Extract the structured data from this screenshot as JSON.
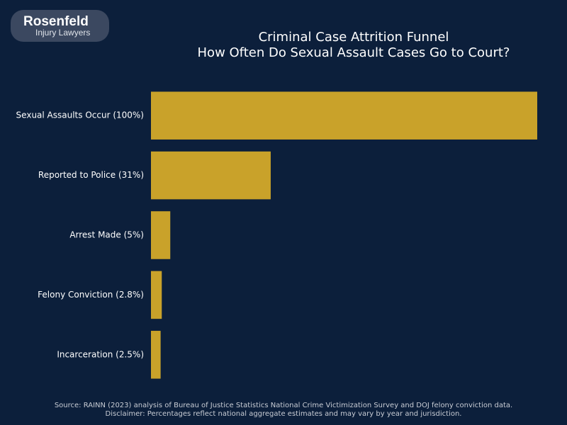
{
  "logo": {
    "name": "Rosenfeld",
    "tagline": "Injury Lawyers"
  },
  "chart_data": {
    "type": "bar",
    "orientation": "horizontal",
    "title": "Criminal Case Attrition Funnel",
    "subtitle": "How Often Do Sexual Assault Cases Go to Court?",
    "categories": [
      "Sexual Assaults Occur (100%)",
      "Reported to Police (31%)",
      "Arrest Made (5%)",
      "Felony Conviction (2.8%)",
      "Incarceration (2.5%)"
    ],
    "values": [
      100,
      31,
      5,
      2.8,
      2.5
    ],
    "color": "#c9a22a",
    "xlim": [
      0,
      100
    ],
    "source": "Source: RAINN (2023) analysis of Bureau of Justice Statistics National Crime Victimization Survey and DOJ felony conviction data.",
    "disclaimer": "Disclaimer: Percentages reflect national aggregate estimates and may vary by year and jurisdiction."
  }
}
